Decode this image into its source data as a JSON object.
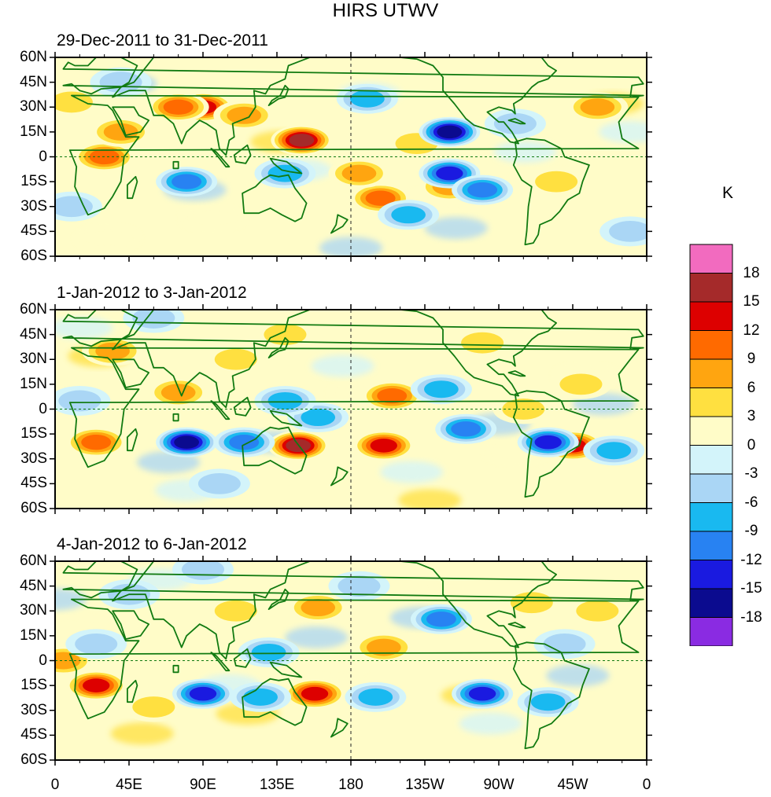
{
  "title": "HIRS UTWV",
  "panels": [
    {
      "title": "29-Dec-2011 to 31-Dec-2011"
    },
    {
      "title": "1-Jan-2012 to 3-Jan-2012"
    },
    {
      "title": "4-Jan-2012 to 6-Jan-2012"
    }
  ],
  "lat_labels": [
    "60N",
    "45N",
    "30N",
    "15N",
    "0",
    "15S",
    "30S",
    "45S",
    "60S"
  ],
  "lon_labels": [
    "0",
    "45E",
    "90E",
    "135E",
    "180",
    "135W",
    "90W",
    "45W",
    "0"
  ],
  "colorbar": {
    "unit": "K",
    "labels": [
      "18",
      "15",
      "12",
      "9",
      "6",
      "3",
      "0",
      "-3",
      "-6",
      "-9",
      "-12",
      "-15",
      "-18"
    ],
    "colors": [
      "#f26bbf",
      "#a52a2a",
      "#dd0000",
      "#ff6a00",
      "#ffa510",
      "#ffe040",
      "#fffcc8",
      "#d3f4fa",
      "#aad6f5",
      "#19b9f0",
      "#2882f2",
      "#1a1ae0",
      "#0b0b8f",
      "#8a2be2"
    ]
  },
  "colors": {
    "coast": "#117a11",
    "background": "#ffffff"
  },
  "anomalies": [
    [
      {
        "lon": 150,
        "lat": 10,
        "v": 18
      },
      {
        "lon": 90,
        "lat": 30,
        "v": 14
      },
      {
        "lon": 75,
        "lat": 30,
        "v": 12
      },
      {
        "lon": 30,
        "lat": 0,
        "v": 12
      },
      {
        "lon": -162,
        "lat": -25,
        "v": 12
      },
      {
        "lon": 40,
        "lat": 15,
        "v": 7
      },
      {
        "lon": 115,
        "lat": 25,
        "v": 7
      },
      {
        "lon": -120,
        "lat": -18,
        "v": 8
      },
      {
        "lon": -175,
        "lat": -10,
        "v": 7
      },
      {
        "lon": 10,
        "lat": 33,
        "v": 6
      },
      {
        "lon": -30,
        "lat": 30,
        "v": 8
      },
      {
        "lon": -55,
        "lat": -15,
        "v": 5
      },
      {
        "lon": -140,
        "lat": 8,
        "v": 6
      },
      {
        "lon": -120,
        "lat": 15,
        "v": -16
      },
      {
        "lon": -120,
        "lat": -10,
        "v": -14
      },
      {
        "lon": -100,
        "lat": -20,
        "v": -12
      },
      {
        "lon": 80,
        "lat": -15,
        "v": -12
      },
      {
        "lon": 140,
        "lat": -10,
        "v": -7
      },
      {
        "lon": -170,
        "lat": 35,
        "v": -8
      },
      {
        "lon": -145,
        "lat": -35,
        "v": -8
      },
      {
        "lon": 10,
        "lat": -30,
        "v": -5
      },
      {
        "lon": -80,
        "lat": 20,
        "v": -6
      },
      {
        "lon": 40,
        "lat": 45,
        "v": -5
      },
      {
        "lon": -10,
        "lat": -45,
        "v": -4
      }
    ],
    [
      {
        "lon": 148,
        "lat": -22,
        "v": 16
      },
      {
        "lon": -160,
        "lat": -22,
        "v": 15
      },
      {
        "lon": -45,
        "lat": -22,
        "v": 14
      },
      {
        "lon": 25,
        "lat": -20,
        "v": 12
      },
      {
        "lon": -155,
        "lat": 8,
        "v": 12
      },
      {
        "lon": 35,
        "lat": 35,
        "v": 9
      },
      {
        "lon": 110,
        "lat": 30,
        "v": 6
      },
      {
        "lon": 75,
        "lat": 10,
        "v": 7
      },
      {
        "lon": -40,
        "lat": 15,
        "v": 6
      },
      {
        "lon": 140,
        "lat": 45,
        "v": 5
      },
      {
        "lon": -75,
        "lat": 0,
        "v": 6
      },
      {
        "lon": 80,
        "lat": -20,
        "v": -16
      },
      {
        "lon": 115,
        "lat": -20,
        "v": -12
      },
      {
        "lon": -60,
        "lat": -20,
        "v": -14
      },
      {
        "lon": -110,
        "lat": -12,
        "v": -11
      },
      {
        "lon": -125,
        "lat": 12,
        "v": -9
      },
      {
        "lon": 160,
        "lat": -5,
        "v": -7
      },
      {
        "lon": 140,
        "lat": 5,
        "v": -8
      },
      {
        "lon": -20,
        "lat": -25,
        "v": -7
      },
      {
        "lon": 60,
        "lat": 55,
        "v": -6
      },
      {
        "lon": 15,
        "lat": 5,
        "v": -5
      },
      {
        "lon": -100,
        "lat": 40,
        "v": 4
      },
      {
        "lon": 100,
        "lat": -45,
        "v": -4
      }
    ],
    [
      {
        "lon": 158,
        "lat": -20,
        "v": 14
      },
      {
        "lon": 25,
        "lat": -15,
        "v": 13
      },
      {
        "lon": 160,
        "lat": 32,
        "v": 7
      },
      {
        "lon": -160,
        "lat": 8,
        "v": 7
      },
      {
        "lon": 5,
        "lat": 0,
        "v": 7
      },
      {
        "lon": 60,
        "lat": -28,
        "v": 6
      },
      {
        "lon": -70,
        "lat": 35,
        "v": 5
      },
      {
        "lon": -30,
        "lat": 30,
        "v": 6
      },
      {
        "lon": 110,
        "lat": 30,
        "v": 5
      },
      {
        "lon": 90,
        "lat": -20,
        "v": -14
      },
      {
        "lon": -100,
        "lat": -20,
        "v": -15
      },
      {
        "lon": -125,
        "lat": 25,
        "v": -11
      },
      {
        "lon": 125,
        "lat": -22,
        "v": -9
      },
      {
        "lon": 130,
        "lat": 5,
        "v": -8
      },
      {
        "lon": -50,
        "lat": 10,
        "v": -6
      },
      {
        "lon": 45,
        "lat": 40,
        "v": -6
      },
      {
        "lon": 25,
        "lat": 10,
        "v": -5
      },
      {
        "lon": -165,
        "lat": -22,
        "v": -7
      },
      {
        "lon": -60,
        "lat": -25,
        "v": -7
      },
      {
        "lon": -175,
        "lat": 45,
        "v": -5
      },
      {
        "lon": 90,
        "lat": 55,
        "v": -4
      }
    ]
  ]
}
